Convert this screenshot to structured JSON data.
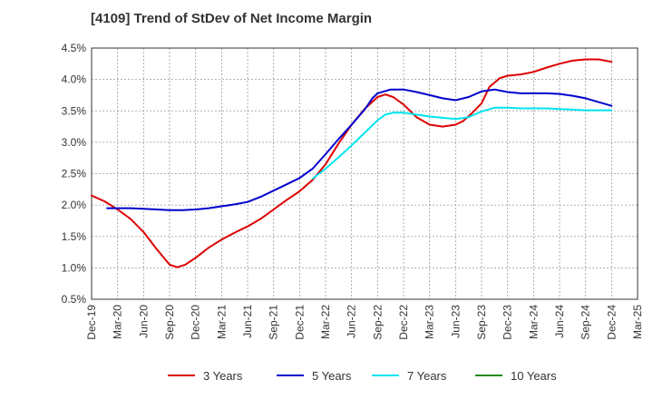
{
  "chart_data": {
    "type": "line",
    "title": "[4109]  Trend of StDev of Net Income Margin",
    "xlabel": "",
    "ylabel": "",
    "ylim": [
      0.5,
      4.5
    ],
    "y_ticks": [
      "0.5%",
      "1.0%",
      "1.5%",
      "2.0%",
      "2.5%",
      "3.0%",
      "3.5%",
      "4.0%",
      "4.5%"
    ],
    "x_ticks": [
      "Dec-19",
      "Mar-20",
      "Jun-20",
      "Sep-20",
      "Dec-20",
      "Mar-21",
      "Jun-21",
      "Sep-21",
      "Dec-21",
      "Mar-22",
      "Jun-22",
      "Sep-22",
      "Dec-22",
      "Mar-23",
      "Jun-23",
      "Sep-23",
      "Dec-23",
      "Mar-24",
      "Jun-24",
      "Sep-24",
      "Dec-24",
      "Mar-25"
    ],
    "grid": true,
    "legend_position": "bottom",
    "series": [
      {
        "name": "3 Years",
        "color": "#dd0000",
        "points": [
          [
            0,
            2.15
          ],
          [
            0.5,
            2.06
          ],
          [
            1,
            1.93
          ],
          [
            1.5,
            1.78
          ],
          [
            2,
            1.57
          ],
          [
            2.5,
            1.3
          ],
          [
            3,
            1.05
          ],
          [
            3.3,
            1.01
          ],
          [
            3.6,
            1.05
          ],
          [
            4,
            1.16
          ],
          [
            4.5,
            1.32
          ],
          [
            5,
            1.45
          ],
          [
            5.5,
            1.56
          ],
          [
            6,
            1.66
          ],
          [
            6.5,
            1.78
          ],
          [
            7,
            1.93
          ],
          [
            7.5,
            2.08
          ],
          [
            8,
            2.22
          ],
          [
            8.5,
            2.4
          ],
          [
            9,
            2.65
          ],
          [
            9.5,
            2.98
          ],
          [
            10,
            3.28
          ],
          [
            10.5,
            3.53
          ],
          [
            11,
            3.72
          ],
          [
            11.3,
            3.76
          ],
          [
            11.6,
            3.72
          ],
          [
            12,
            3.6
          ],
          [
            12.5,
            3.4
          ],
          [
            13,
            3.28
          ],
          [
            13.5,
            3.25
          ],
          [
            14,
            3.28
          ],
          [
            14.3,
            3.34
          ],
          [
            14.6,
            3.45
          ],
          [
            15,
            3.62
          ],
          [
            15.3,
            3.88
          ],
          [
            15.7,
            4.02
          ],
          [
            16,
            4.06
          ],
          [
            16.5,
            4.08
          ],
          [
            17,
            4.12
          ],
          [
            17.5,
            4.19
          ],
          [
            18,
            4.25
          ],
          [
            18.5,
            4.3
          ],
          [
            19,
            4.32
          ],
          [
            19.5,
            4.32
          ],
          [
            20,
            4.28
          ]
        ]
      },
      {
        "name": "5 Years",
        "color": "#0000cc",
        "points": [
          [
            0.6,
            1.95
          ],
          [
            1,
            1.95
          ],
          [
            1.5,
            1.95
          ],
          [
            2,
            1.94
          ],
          [
            2.5,
            1.93
          ],
          [
            3,
            1.92
          ],
          [
            3.5,
            1.92
          ],
          [
            4,
            1.93
          ],
          [
            4.5,
            1.95
          ],
          [
            5,
            1.98
          ],
          [
            5.5,
            2.01
          ],
          [
            6,
            2.05
          ],
          [
            6.5,
            2.13
          ],
          [
            7,
            2.23
          ],
          [
            7.5,
            2.33
          ],
          [
            8,
            2.43
          ],
          [
            8.5,
            2.58
          ],
          [
            9,
            2.81
          ],
          [
            9.5,
            3.05
          ],
          [
            10,
            3.28
          ],
          [
            10.5,
            3.52
          ],
          [
            10.8,
            3.7
          ],
          [
            11,
            3.78
          ],
          [
            11.5,
            3.84
          ],
          [
            12,
            3.84
          ],
          [
            12.5,
            3.8
          ],
          [
            13,
            3.75
          ],
          [
            13.5,
            3.7
          ],
          [
            14,
            3.67
          ],
          [
            14.5,
            3.72
          ],
          [
            15,
            3.81
          ],
          [
            15.5,
            3.84
          ],
          [
            16,
            3.8
          ],
          [
            16.5,
            3.78
          ],
          [
            17,
            3.78
          ],
          [
            17.5,
            3.78
          ],
          [
            18,
            3.77
          ],
          [
            18.5,
            3.74
          ],
          [
            19,
            3.7
          ],
          [
            19.5,
            3.64
          ],
          [
            20,
            3.58
          ]
        ]
      },
      {
        "name": "7 Years",
        "color": "#00e5ee",
        "points": [
          [
            8.5,
            2.42
          ],
          [
            9,
            2.58
          ],
          [
            9.5,
            2.76
          ],
          [
            10,
            2.95
          ],
          [
            10.5,
            3.15
          ],
          [
            11,
            3.35
          ],
          [
            11.3,
            3.44
          ],
          [
            11.6,
            3.47
          ],
          [
            12,
            3.47
          ],
          [
            12.5,
            3.44
          ],
          [
            13,
            3.41
          ],
          [
            13.5,
            3.39
          ],
          [
            14,
            3.37
          ],
          [
            14.5,
            3.4
          ],
          [
            15,
            3.49
          ],
          [
            15.5,
            3.55
          ],
          [
            16,
            3.55
          ],
          [
            16.5,
            3.54
          ],
          [
            17,
            3.54
          ],
          [
            17.5,
            3.54
          ],
          [
            18,
            3.53
          ],
          [
            18.5,
            3.52
          ],
          [
            19,
            3.51
          ],
          [
            19.5,
            3.51
          ],
          [
            20,
            3.51
          ]
        ]
      },
      {
        "name": "10 Years",
        "color": "#228b22",
        "points": []
      }
    ]
  }
}
